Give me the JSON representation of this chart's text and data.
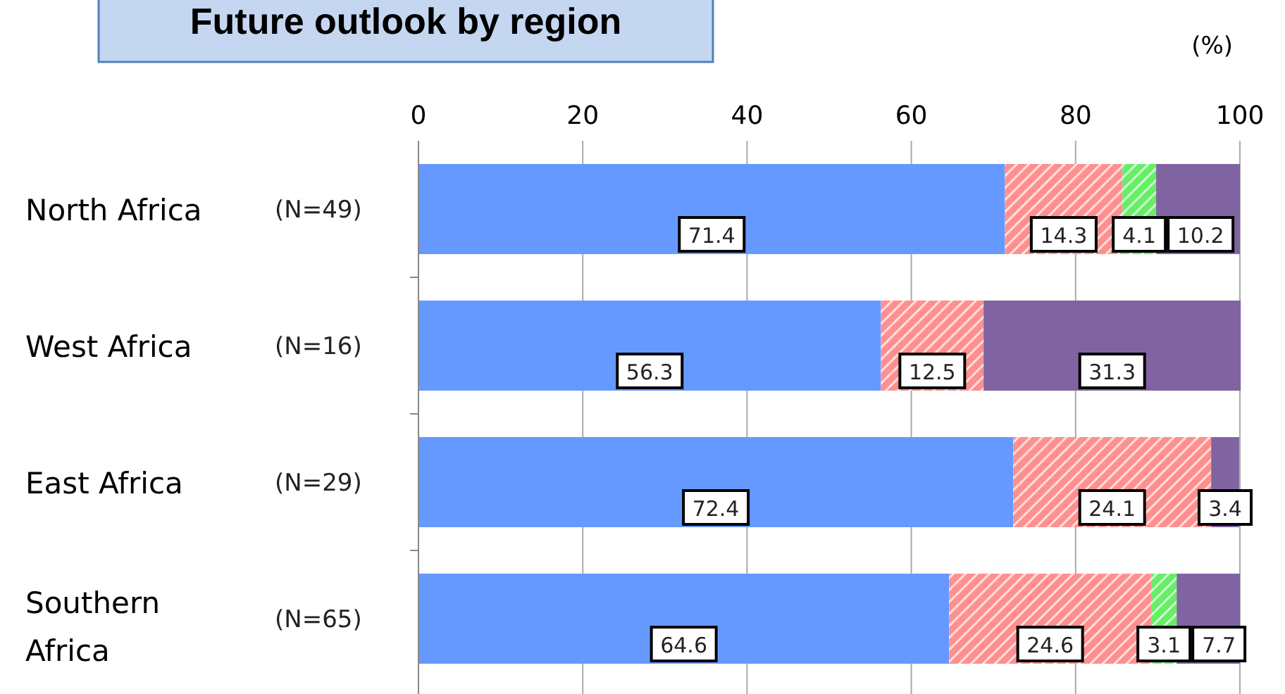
{
  "chart_data": {
    "type": "bar",
    "orientation": "horizontal",
    "stacked": true,
    "title": "Future outlook by region",
    "categories": [
      "North Africa",
      "West Africa",
      "East Africa",
      "Southern Africa"
    ],
    "series": [
      {
        "color": "#6699ff",
        "values": [
          71.4,
          56.3,
          72.4,
          64.6
        ]
      },
      {
        "color": "#ff8f8f",
        "values": [
          14.3,
          12.5,
          24.1,
          24.6
        ]
      },
      {
        "color": "#66ee66",
        "values": [
          4.1,
          null,
          null,
          3.1
        ]
      },
      {
        "color": "#8064a2",
        "values": [
          10.2,
          31.3,
          3.4,
          7.7
        ]
      }
    ],
    "xlim": [
      0,
      100
    ],
    "xticks": [
      0,
      20,
      40,
      60,
      80,
      100
    ],
    "grid": "x",
    "data_labels": true,
    "annotations": [
      "(%)",
      "(N=49)",
      "(N=16)",
      "(N=29)",
      "(N=65)"
    ]
  }
}
